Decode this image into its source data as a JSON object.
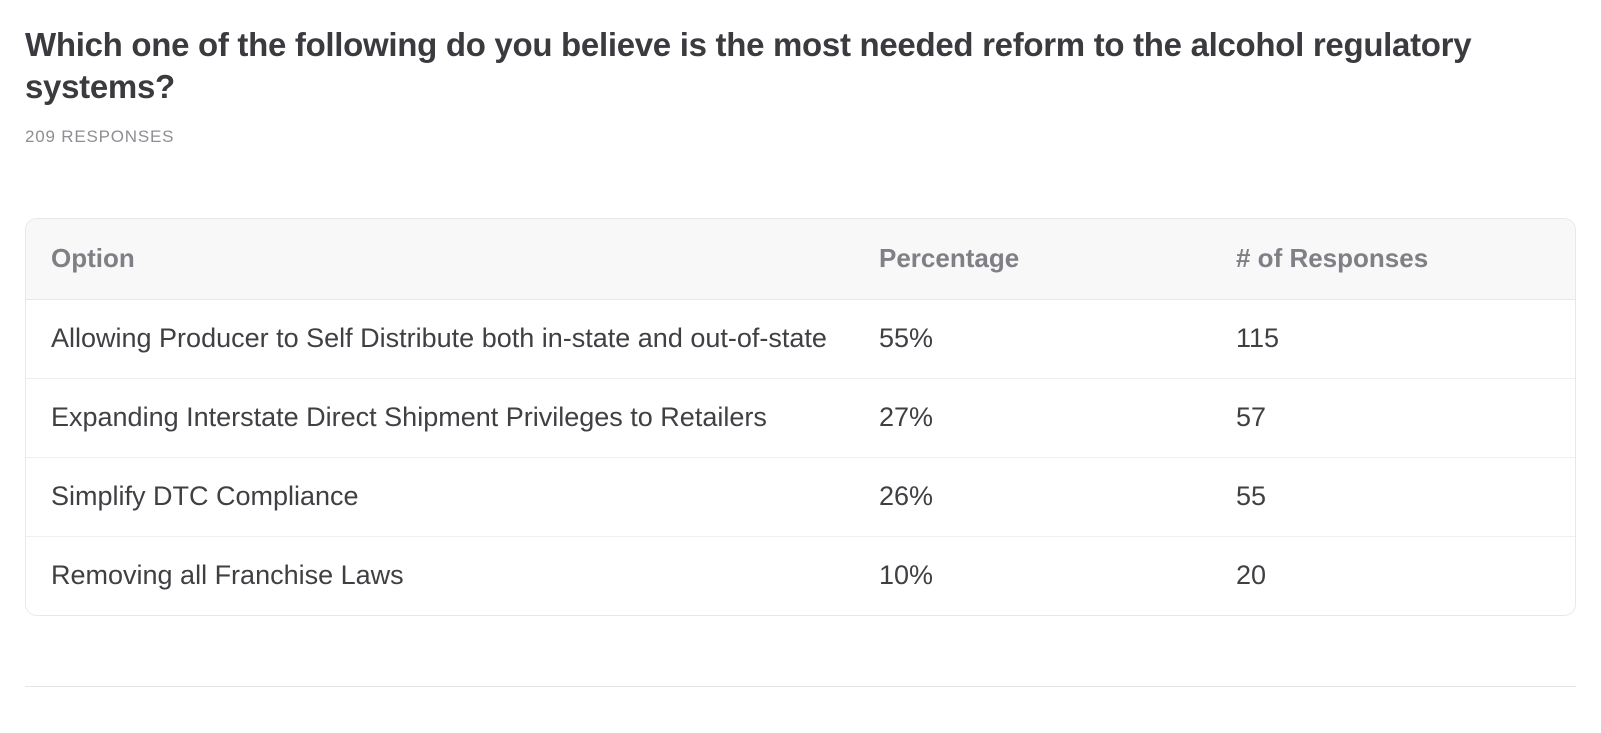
{
  "page": {
    "title": "Which one of the following do you believe is the most needed reform to the alcohol regulatory systems?",
    "response_count_label": "209 RESPONSES"
  },
  "table": {
    "columns": [
      {
        "label": "Option"
      },
      {
        "label": "Percentage"
      },
      {
        "label": "# of Responses"
      }
    ],
    "rows": [
      {
        "option": "Allowing Producer to Self Distribute both in-state and out-of-state",
        "percentage": "55%",
        "responses": "115"
      },
      {
        "option": "Expanding Interstate Direct Shipment Privileges to Retailers",
        "percentage": "27%",
        "responses": "57"
      },
      {
        "option": "Simplify DTC Compliance",
        "percentage": "26%",
        "responses": "55"
      },
      {
        "option": "Removing all Franchise Laws",
        "percentage": "10%",
        "responses": "20"
      }
    ]
  },
  "colors": {
    "title_text": "#3b3b3f",
    "muted_text": "#8e8e93",
    "header_text": "#7f7f85",
    "cell_text": "#3f3f44",
    "header_background": "#f8f8f9",
    "card_border": "#e8e8ea",
    "row_divider": "#efeff1",
    "page_divider": "#e5e5e7"
  }
}
